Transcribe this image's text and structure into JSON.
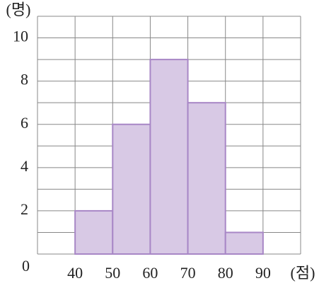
{
  "chart_data": {
    "type": "histogram",
    "x_label": "(점)",
    "y_label": "(명)",
    "bins": [
      40,
      50,
      60,
      70,
      80,
      90
    ],
    "values": [
      2,
      6,
      9,
      7,
      1
    ],
    "color": "#d8c9e5",
    "edge_color": "#a887c6",
    "xlim": [
      30,
      100
    ],
    "xticks": [
      40,
      50,
      60,
      70,
      80,
      90
    ],
    "ylim": [
      0,
      11
    ],
    "yticks": [
      0,
      2,
      4,
      6,
      8,
      10
    ],
    "grid": true
  }
}
